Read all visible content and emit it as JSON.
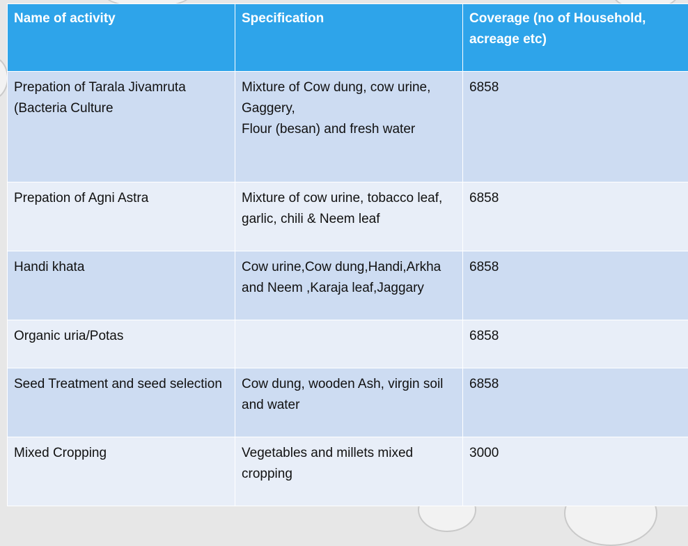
{
  "table": {
    "headers": [
      "Name of activity",
      "Specification",
      "Coverage (no of  Household, acreage etc)"
    ],
    "rows": [
      {
        "activity": "Prepation of Tarala Jivamruta (Bacteria Culture",
        "specification": "Mixture of Cow dung, cow urine, Gaggery,\nFlour (besan) and fresh water",
        "coverage": "6858"
      },
      {
        "activity": "Prepation of Agni Astra",
        "specification": "Mixture of cow urine, tobacco leaf, garlic, chili & Neem leaf",
        "coverage": "6858"
      },
      {
        "activity": "Handi khata",
        "specification": "Cow urine,Cow dung,Handi,Arkha and Neem ,Karaja leaf,Jaggary",
        "coverage": "6858"
      },
      {
        "activity": "Organic uria/Potas",
        "specification": "",
        "coverage": "6858"
      },
      {
        "activity": "Seed Treatment and seed selection",
        "specification": "Cow dung, wooden Ash, virgin soil and water",
        "coverage": "6858"
      },
      {
        "activity": "Mixed Cropping",
        "specification": "Vegetables and millets mixed cropping",
        "coverage": "3000"
      }
    ]
  },
  "colors": {
    "header_bg": "#2ea4ea",
    "row_dark": "#cddcf2",
    "row_light": "#e8eef8"
  }
}
